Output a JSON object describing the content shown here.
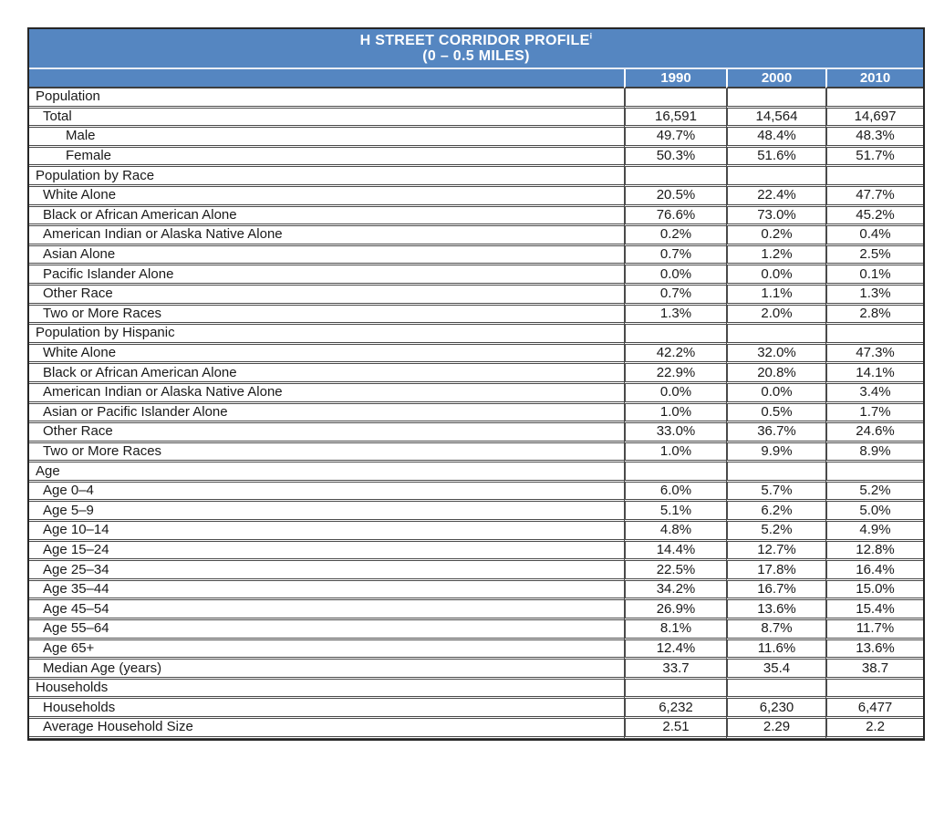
{
  "title": {
    "line1": "H STREET CORRIDOR PROFILE",
    "superscript": "i",
    "line2": "(0 – 0.5 MILES)"
  },
  "columns": [
    "1990",
    "2000",
    "2010"
  ],
  "colors": {
    "header_blue": "#5586c1",
    "header_text": "#ffffff",
    "section_row_bg": "#f1f1f0",
    "border": "#4a4a4a",
    "outer_border": "#262626"
  },
  "sections": [
    {
      "label": "Population",
      "rows": [
        {
          "label": "Total",
          "indent": 1,
          "values": [
            "16,591",
            "14,564",
            "14,697"
          ]
        },
        {
          "label": "Male",
          "indent": 2,
          "values": [
            "49.7%",
            "48.4%",
            "48.3%"
          ]
        },
        {
          "label": "Female",
          "indent": 2,
          "values": [
            "50.3%",
            "51.6%",
            "51.7%"
          ]
        }
      ]
    },
    {
      "label": "Population by Race",
      "rows": [
        {
          "label": "White Alone",
          "indent": 1,
          "values": [
            "20.5%",
            "22.4%",
            "47.7%"
          ]
        },
        {
          "label": "Black or African American Alone",
          "indent": 1,
          "values": [
            "76.6%",
            "73.0%",
            "45.2%"
          ]
        },
        {
          "label": "American Indian or Alaska Native Alone",
          "indent": 1,
          "values": [
            "0.2%",
            "0.2%",
            "0.4%"
          ]
        },
        {
          "label": "Asian Alone",
          "indent": 1,
          "values": [
            "0.7%",
            "1.2%",
            "2.5%"
          ]
        },
        {
          "label": "Pacific Islander Alone",
          "indent": 1,
          "values": [
            "0.0%",
            "0.0%",
            "0.1%"
          ]
        },
        {
          "label": "Other Race",
          "indent": 1,
          "values": [
            "0.7%",
            "1.1%",
            "1.3%"
          ]
        },
        {
          "label": "Two or More Races",
          "indent": 1,
          "values": [
            "1.3%",
            "2.0%",
            "2.8%"
          ]
        }
      ]
    },
    {
      "label": "Population by Hispanic",
      "rows": [
        {
          "label": "White Alone",
          "indent": 1,
          "values": [
            "42.2%",
            "32.0%",
            "47.3%"
          ]
        },
        {
          "label": "Black or African American Alone",
          "indent": 1,
          "values": [
            "22.9%",
            "20.8%",
            "14.1%"
          ]
        },
        {
          "label": "American Indian or Alaska Native Alone",
          "indent": 1,
          "values": [
            "0.0%",
            "0.0%",
            "3.4%"
          ]
        },
        {
          "label": "Asian or Pacific Islander Alone",
          "indent": 1,
          "values": [
            "1.0%",
            "0.5%",
            "1.7%"
          ]
        },
        {
          "label": "Other Race",
          "indent": 1,
          "values": [
            "33.0%",
            "36.7%",
            "24.6%"
          ]
        },
        {
          "label": "Two or More Races",
          "indent": 1,
          "values": [
            "1.0%",
            "9.9%",
            "8.9%"
          ]
        }
      ]
    },
    {
      "label": "Age",
      "rows": [
        {
          "label": "Age 0–4",
          "indent": 1,
          "values": [
            "6.0%",
            "5.7%",
            "5.2%"
          ]
        },
        {
          "label": "Age 5–9",
          "indent": 1,
          "values": [
            "5.1%",
            "6.2%",
            "5.0%"
          ]
        },
        {
          "label": "Age 10–14",
          "indent": 1,
          "values": [
            "4.8%",
            "5.2%",
            "4.9%"
          ]
        },
        {
          "label": "Age 15–24",
          "indent": 1,
          "values": [
            "14.4%",
            "12.7%",
            "12.8%"
          ]
        },
        {
          "label": "Age 25–34",
          "indent": 1,
          "values": [
            "22.5%",
            "17.8%",
            "16.4%"
          ]
        },
        {
          "label": "Age 35–44",
          "indent": 1,
          "values": [
            "34.2%",
            "16.7%",
            "15.0%"
          ]
        },
        {
          "label": "Age 45–54",
          "indent": 1,
          "values": [
            "26.9%",
            "13.6%",
            "15.4%"
          ]
        },
        {
          "label": "Age 55–64",
          "indent": 1,
          "values": [
            "8.1%",
            "8.7%",
            "11.7%"
          ]
        },
        {
          "label": "Age 65+",
          "indent": 1,
          "values": [
            "12.4%",
            "11.6%",
            "13.6%"
          ]
        },
        {
          "label": "Median Age (years)",
          "indent": 1,
          "values": [
            "33.7",
            "35.4",
            "38.7"
          ]
        }
      ]
    },
    {
      "label": "Households",
      "rows": [
        {
          "label": "Households",
          "indent": 1,
          "values": [
            "6,232",
            "6,230",
            "6,477"
          ]
        },
        {
          "label": "Average Household Size",
          "indent": 1,
          "values": [
            "2.51",
            "2.29",
            "2.2"
          ]
        }
      ]
    }
  ],
  "chart_data": {
    "type": "table",
    "title": "H STREET CORRIDOR PROFILE (0 – 0.5 MILES)",
    "columns": [
      "",
      "1990",
      "2000",
      "2010"
    ],
    "rows": [
      [
        "Population",
        "",
        "",
        ""
      ],
      [
        "Total",
        "16,591",
        "14,564",
        "14,697"
      ],
      [
        "Male",
        "49.7%",
        "48.4%",
        "48.3%"
      ],
      [
        "Female",
        "50.3%",
        "51.6%",
        "51.7%"
      ],
      [
        "Population by Race",
        "",
        "",
        ""
      ],
      [
        "White Alone",
        "20.5%",
        "22.4%",
        "47.7%"
      ],
      [
        "Black or African American Alone",
        "76.6%",
        "73.0%",
        "45.2%"
      ],
      [
        "American Indian or Alaska Native Alone",
        "0.2%",
        "0.2%",
        "0.4%"
      ],
      [
        "Asian Alone",
        "0.7%",
        "1.2%",
        "2.5%"
      ],
      [
        "Pacific Islander Alone",
        "0.0%",
        "0.0%",
        "0.1%"
      ],
      [
        "Other Race",
        "0.7%",
        "1.1%",
        "1.3%"
      ],
      [
        "Two or More Races",
        "1.3%",
        "2.0%",
        "2.8%"
      ],
      [
        "Population by Hispanic",
        "",
        "",
        ""
      ],
      [
        "White Alone",
        "42.2%",
        "32.0%",
        "47.3%"
      ],
      [
        "Black or African American Alone",
        "22.9%",
        "20.8%",
        "14.1%"
      ],
      [
        "American Indian or Alaska Native Alone",
        "0.0%",
        "0.0%",
        "3.4%"
      ],
      [
        "Asian or Pacific Islander Alone",
        "1.0%",
        "0.5%",
        "1.7%"
      ],
      [
        "Other Race",
        "33.0%",
        "36.7%",
        "24.6%"
      ],
      [
        "Two or More Races",
        "1.0%",
        "9.9%",
        "8.9%"
      ],
      [
        "Age",
        "",
        "",
        ""
      ],
      [
        "Age 0–4",
        "6.0%",
        "5.7%",
        "5.2%"
      ],
      [
        "Age 5–9",
        "5.1%",
        "6.2%",
        "5.0%"
      ],
      [
        "Age 10–14",
        "4.8%",
        "5.2%",
        "4.9%"
      ],
      [
        "Age 15–24",
        "14.4%",
        "12.7%",
        "12.8%"
      ],
      [
        "Age 25–34",
        "22.5%",
        "17.8%",
        "16.4%"
      ],
      [
        "Age 35–44",
        "34.2%",
        "16.7%",
        "15.0%"
      ],
      [
        "Age 45–54",
        "26.9%",
        "13.6%",
        "15.4%"
      ],
      [
        "Age 55–64",
        "8.1%",
        "8.7%",
        "11.7%"
      ],
      [
        "Age 65+",
        "12.4%",
        "11.6%",
        "13.6%"
      ],
      [
        "Median Age (years)",
        "33.7",
        "35.4",
        "38.7"
      ],
      [
        "Households",
        "",
        "",
        ""
      ],
      [
        "Households",
        "6,232",
        "6,230",
        "6,477"
      ],
      [
        "Average Household Size",
        "2.51",
        "2.29",
        "2.2"
      ]
    ]
  }
}
